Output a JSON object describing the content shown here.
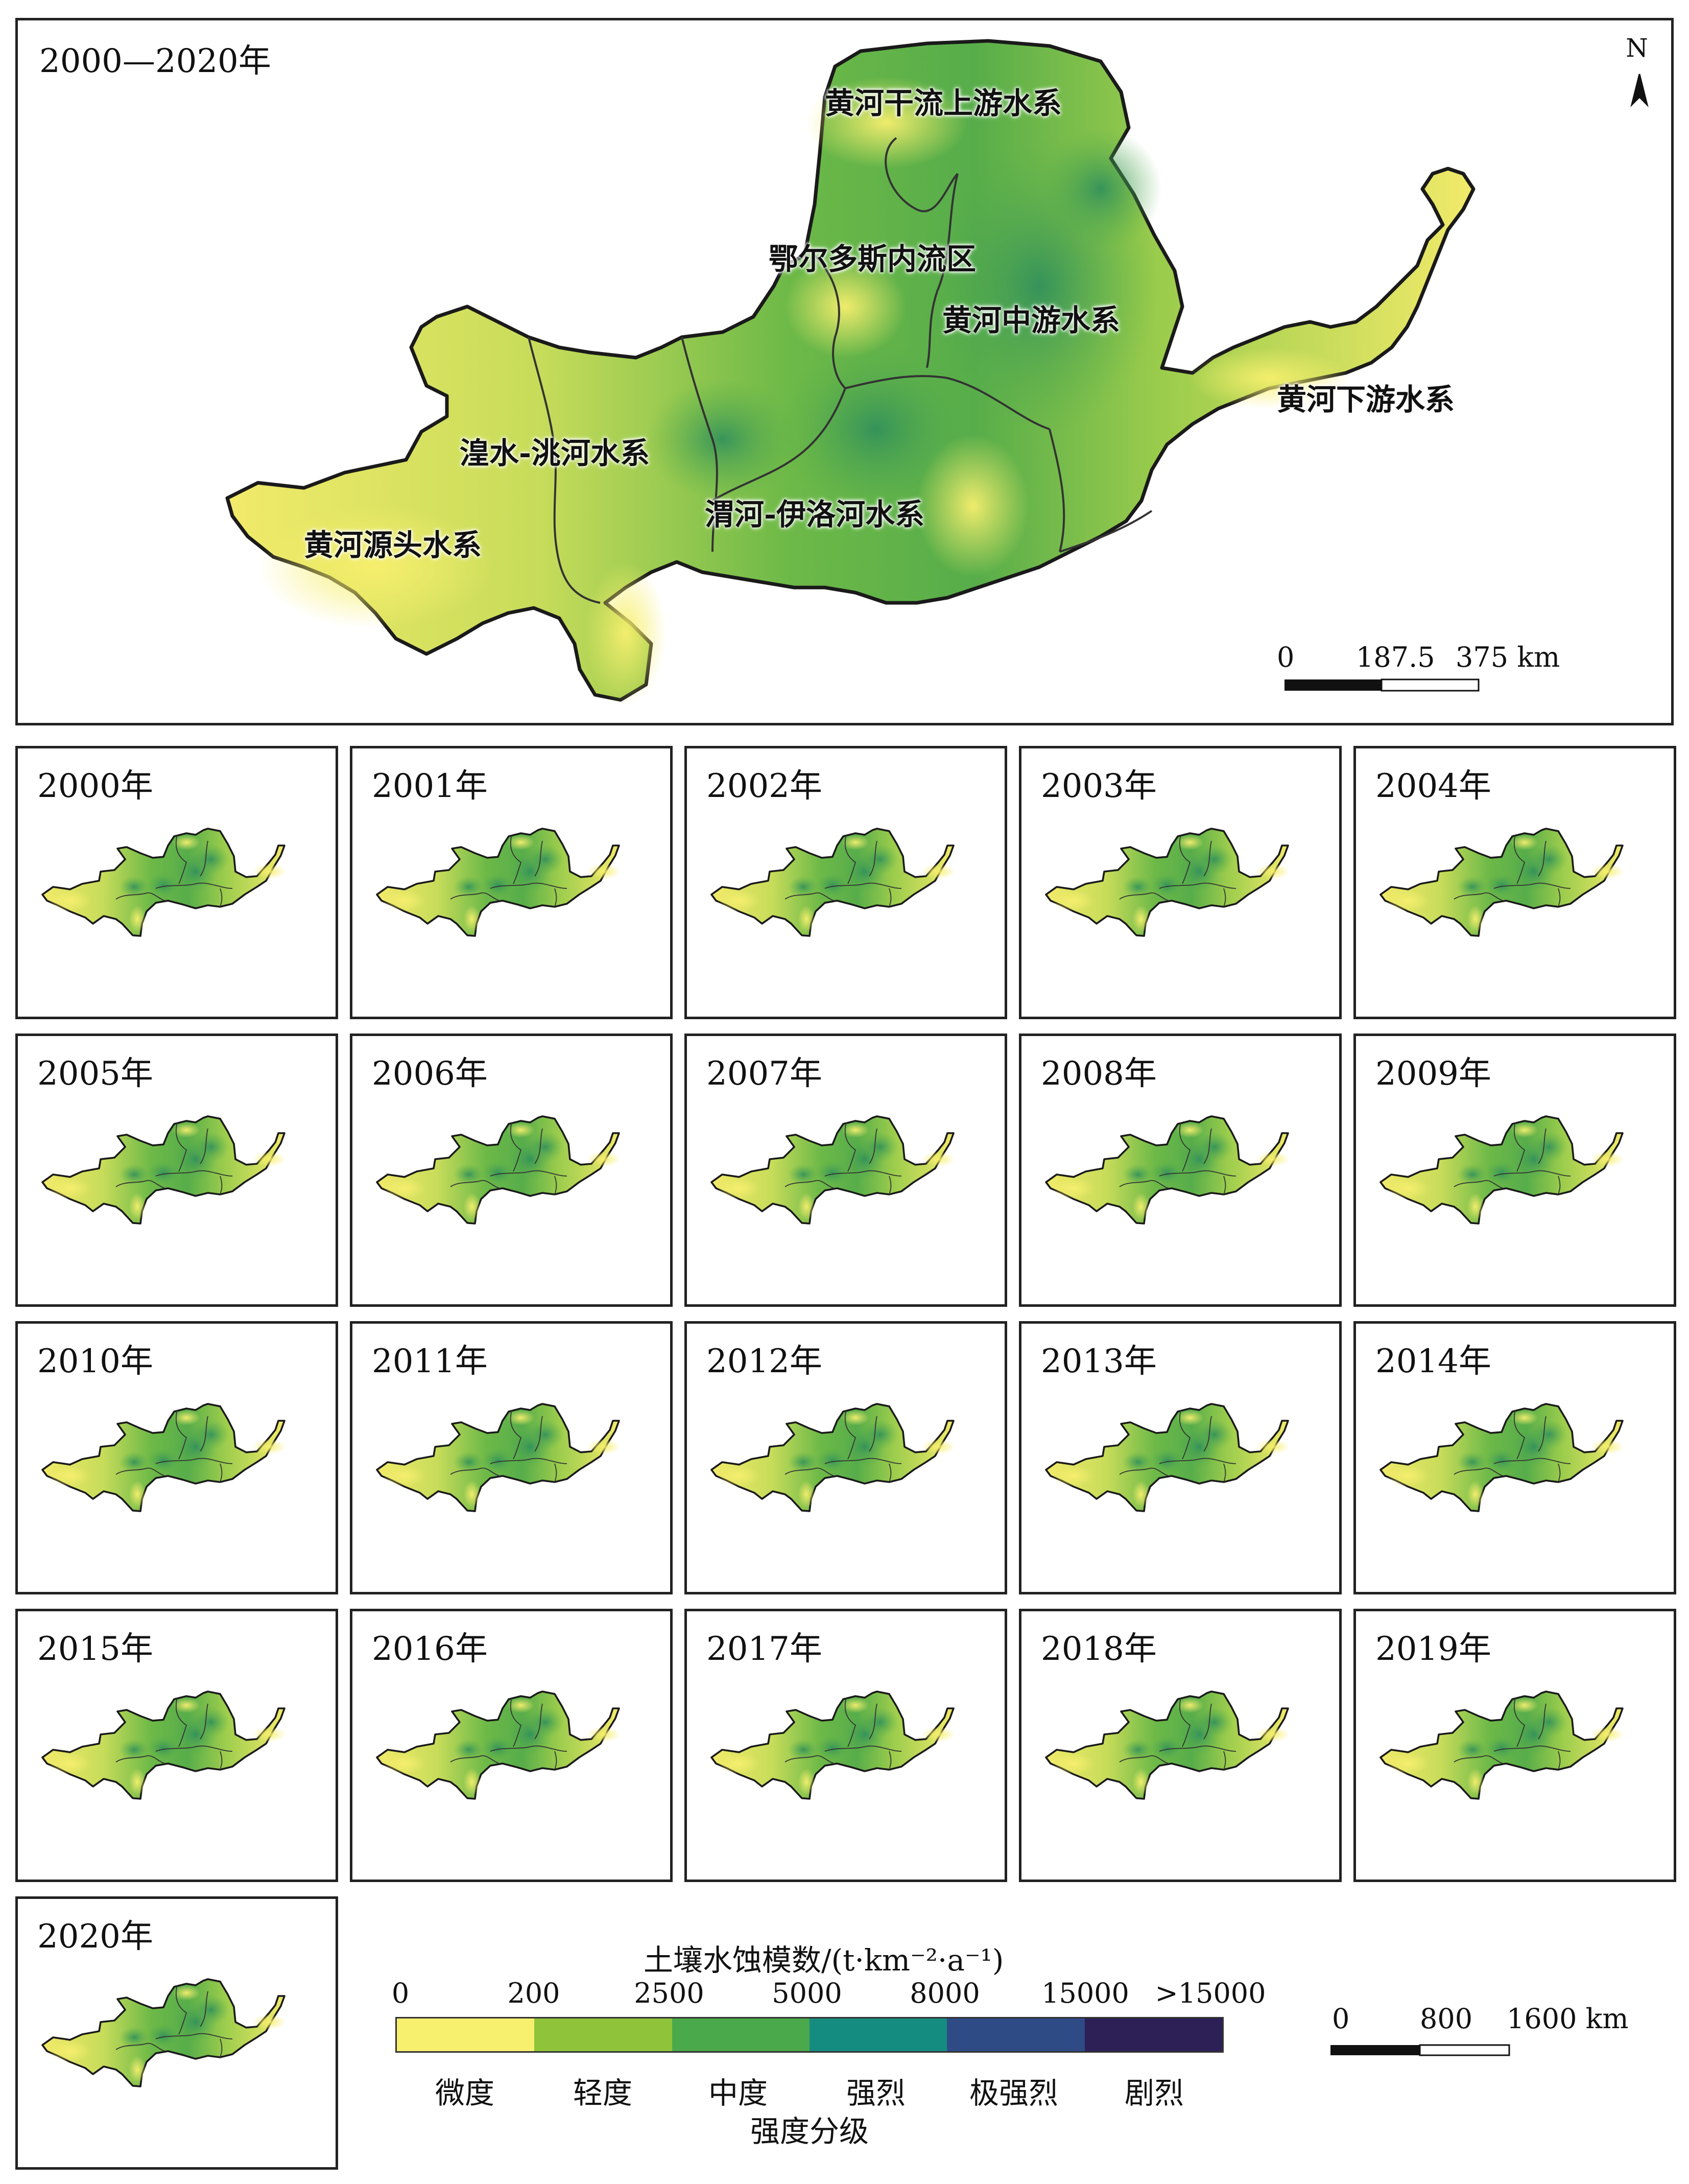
{
  "main_map": {
    "title": "2000—2020年",
    "regions": [
      "黄河干流上游水系",
      "鄂尔多斯内流区",
      "黄河中游水系",
      "黄河下游水系",
      "湟水-洮河水系",
      "渭河-伊洛河水系",
      "黄河源头水系"
    ],
    "north_label": "N",
    "scale_bar": {
      "labels": [
        "0",
        "187.5",
        "375 km"
      ]
    }
  },
  "year_panels": [
    "2000年",
    "2001年",
    "2002年",
    "2003年",
    "2004年",
    "2005年",
    "2006年",
    "2007年",
    "2008年",
    "2009年",
    "2010年",
    "2011年",
    "2012年",
    "2013年",
    "2014年",
    "2015年",
    "2016年",
    "2017年",
    "2018年",
    "2019年",
    "2020年"
  ],
  "legend": {
    "title": "土壤水蚀模数/(t·km⁻²·a⁻¹)",
    "ticks": [
      "0",
      "200",
      "2500",
      "5000",
      "8000",
      "15000",
      ">15000"
    ],
    "classes": [
      {
        "label": "微度",
        "color": "#f7ef6e"
      },
      {
        "label": "轻度",
        "color": "#8fc43a"
      },
      {
        "label": "中度",
        "color": "#4aa94a"
      },
      {
        "label": "强烈",
        "color": "#158c80"
      },
      {
        "label": "极强烈",
        "color": "#2e4b86"
      },
      {
        "label": "剧烈",
        "color": "#2c2056"
      }
    ],
    "footer": "强度分级"
  },
  "small_scale_bar": {
    "labels": [
      "0",
      "800",
      "1600 km"
    ]
  },
  "colors": {
    "slight": "#f7ef6e",
    "light": "#8fc43a",
    "moderate": "#4aa94a",
    "boundary": "#1a1a1a"
  }
}
